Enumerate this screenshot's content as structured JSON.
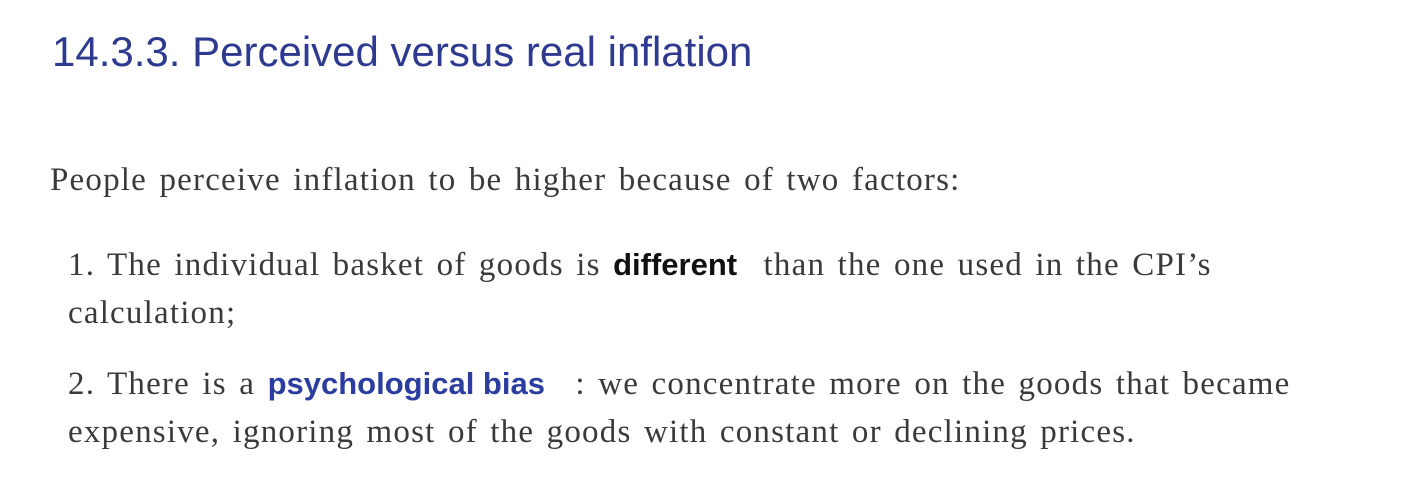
{
  "heading": {
    "title": "14.3.3. Perceived versus real inflation"
  },
  "body": {
    "intro": "People perceive inflation to be higher because of two factors:",
    "items": [
      {
        "number": "1.",
        "before": "The individual basket of goods is",
        "emphasis": "different",
        "after": "than the one used in the CPI’s calculation;"
      },
      {
        "number": "2.",
        "before": "There is a",
        "emphasis": "psychological bias",
        "after": ": we concentrate more on the goods that became expensive, ignoring most of the goods with constant or declining prices."
      }
    ]
  },
  "colors": {
    "title": "#2e3a8f",
    "body_text": "#3a3a3a",
    "emphasis_black": "#111111",
    "emphasis_blue": "#2b3da0"
  }
}
